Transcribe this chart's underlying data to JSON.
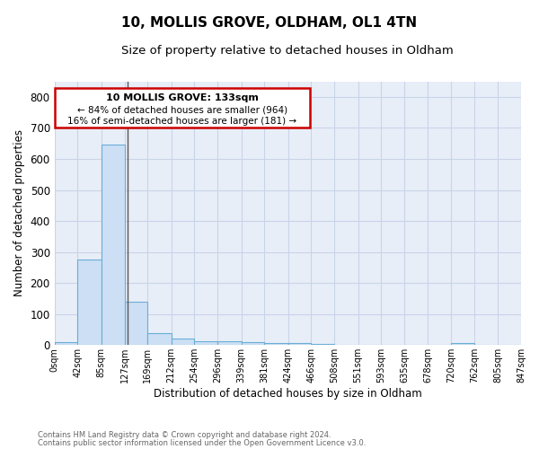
{
  "title": "10, MOLLIS GROVE, OLDHAM, OL1 4TN",
  "subtitle": "Size of property relative to detached houses in Oldham",
  "xlabel": "Distribution of detached houses by size in Oldham",
  "ylabel": "Number of detached properties",
  "footnote1": "Contains HM Land Registry data © Crown copyright and database right 2024.",
  "footnote2": "Contains public sector information licensed under the Open Government Licence v3.0.",
  "annotation_line1": "10 MOLLIS GROVE: 133sqm",
  "annotation_line2": "← 84% of detached houses are smaller (964)",
  "annotation_line3": "16% of semi-detached houses are larger (181) →",
  "property_size": 133,
  "bin_edges": [
    0,
    42,
    85,
    127,
    169,
    212,
    254,
    296,
    339,
    381,
    424,
    466,
    508,
    551,
    593,
    635,
    678,
    720,
    762,
    805,
    847
  ],
  "bin_labels": [
    "0sqm",
    "42sqm",
    "85sqm",
    "127sqm",
    "169sqm",
    "212sqm",
    "254sqm",
    "296sqm",
    "339sqm",
    "381sqm",
    "424sqm",
    "466sqm",
    "508sqm",
    "551sqm",
    "593sqm",
    "635sqm",
    "678sqm",
    "720sqm",
    "762sqm",
    "805sqm",
    "847sqm"
  ],
  "bar_heights": [
    10,
    275,
    645,
    140,
    38,
    20,
    13,
    12,
    10,
    8,
    7,
    5,
    0,
    0,
    0,
    0,
    0,
    8,
    0,
    0
  ],
  "bar_color": "#ccdff4",
  "bar_edge_color": "#6aaed6",
  "grid_color": "#c8d4e8",
  "background_color": "#e8eef8",
  "vline_color": "#555555",
  "annotation_box_color": "#cc0000",
  "ylim": [
    0,
    850
  ],
  "yticks": [
    0,
    100,
    200,
    300,
    400,
    500,
    600,
    700,
    800
  ],
  "xlim": [
    0,
    847
  ]
}
